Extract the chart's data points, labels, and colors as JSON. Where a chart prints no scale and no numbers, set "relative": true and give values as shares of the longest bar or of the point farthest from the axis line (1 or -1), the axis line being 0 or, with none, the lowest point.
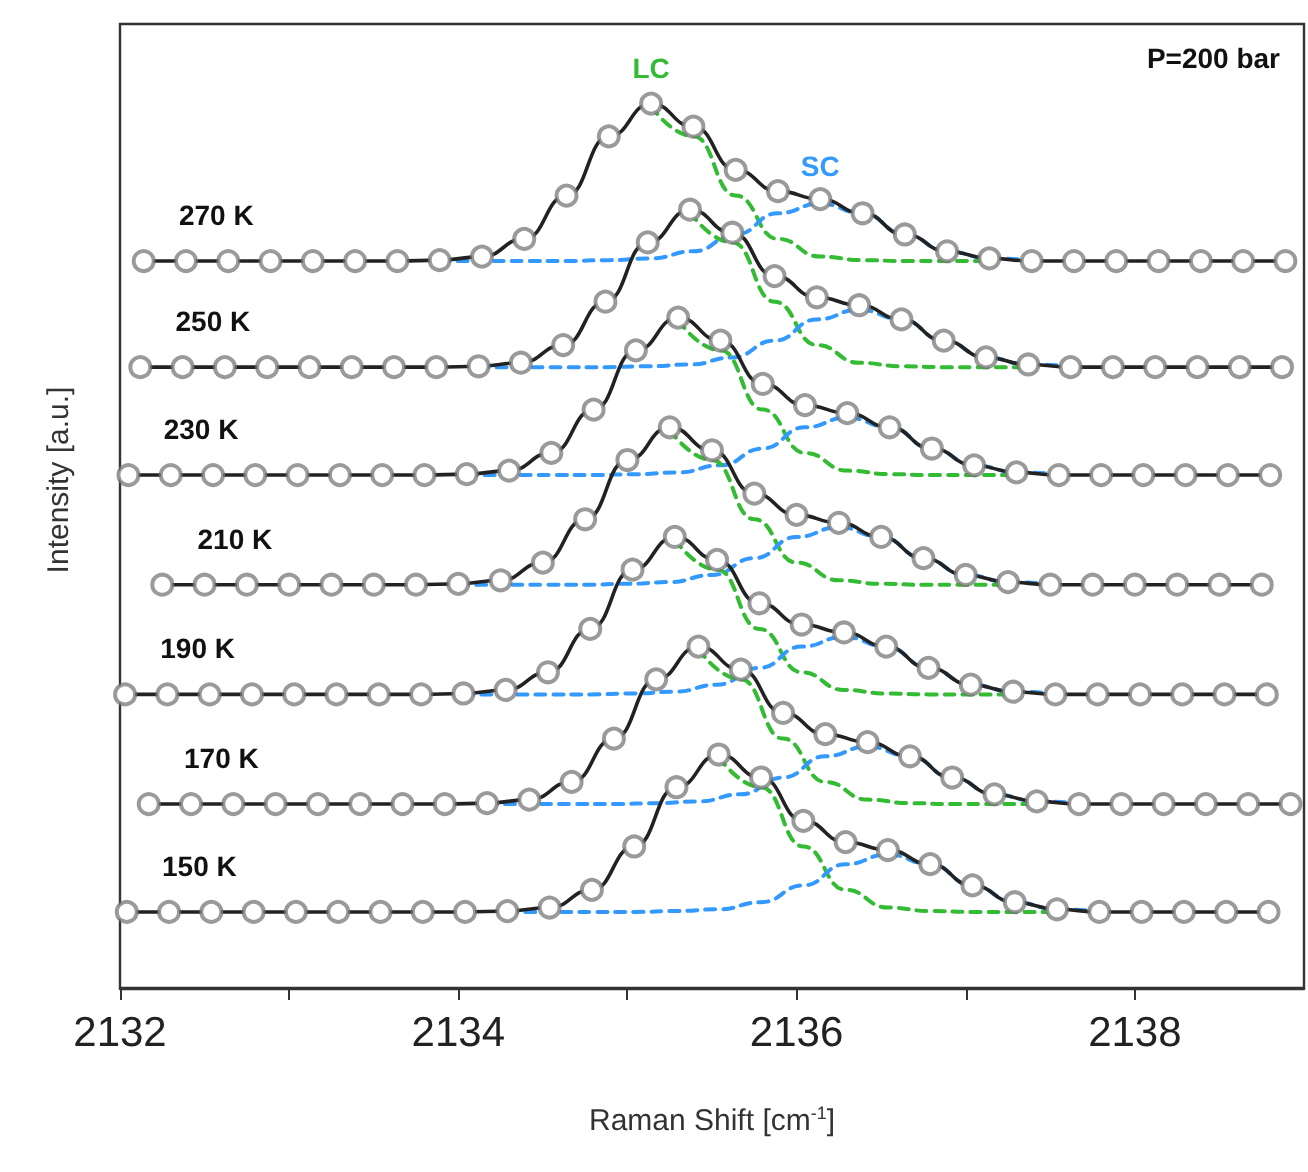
{
  "chart_data": {
    "type": "line",
    "relative": true,
    "xlabel": "Raman Shift [cm$^{-1}$]",
    "ylabel": "Intensity [a.u.]",
    "xlim": [
      2132,
      2139
    ],
    "xticks": [
      2132,
      {
        "value": 2133,
        "label": null
      },
      2134,
      {
        "value": 2135,
        "label": null
      },
      2136,
      {
        "value": 2137,
        "label": null
      },
      2138
    ],
    "grid": false,
    "legend": false,
    "annotations": [
      "P=200 bar"
    ],
    "series": [
      {
        "name": "270 K",
        "color": "#222222",
        "marker": "circle",
        "line_style": "solid",
        "x": [
          2132.14,
          2132.39,
          2132.64,
          2132.89,
          2133.14,
          2133.39,
          2133.64,
          2133.89,
          2134.14,
          2134.39,
          2134.64,
          2134.89,
          2135.14,
          2135.39,
          2135.64,
          2135.89,
          2136.14,
          2136.39,
          2136.64,
          2136.89,
          2137.14,
          2137.39,
          2137.64,
          2137.89,
          2138.14,
          2138.39,
          2138.64,
          2138.89
        ],
        "values": [
          0.822,
          0.822,
          0.822,
          0.822,
          0.822,
          0.822,
          0.822,
          0.823,
          0.827,
          0.847,
          0.896,
          0.963,
          1.0,
          0.974,
          0.925,
          0.901,
          0.892,
          0.876,
          0.852,
          0.833,
          0.825,
          0.822,
          0.822,
          0.822,
          0.822,
          0.822,
          0.822,
          0.822
        ]
      },
      {
        "name": "LC",
        "color": "#33bb33",
        "marker": "none",
        "line_style": "dashed",
        "x": [
          2135.14,
          2135.39,
          2135.64,
          2135.89,
          2136.14,
          2136.39,
          2136.64,
          2136.89,
          2137.14
        ],
        "values": [
          0.997,
          0.963,
          0.896,
          0.847,
          0.827,
          0.823,
          0.822,
          0.822,
          0.822
        ]
      },
      {
        "name": "SC",
        "color": "#3399ff",
        "marker": "none",
        "line_style": "dashed",
        "x": [
          2133.89,
          2134.14,
          2134.39,
          2134.64,
          2134.89,
          2135.14,
          2135.39,
          2135.64,
          2135.89,
          2136.14,
          2136.39,
          2136.64,
          2136.89,
          2137.14,
          2137.39
        ],
        "values": [
          0.822,
          0.822,
          0.822,
          0.822,
          0.823,
          0.825,
          0.833,
          0.852,
          0.876,
          0.887,
          0.876,
          0.852,
          0.833,
          0.825,
          0.823
        ]
      },
      {
        "name": "250 K",
        "color": "#222222",
        "marker": "circle",
        "line_style": "solid",
        "x": [
          2132.12,
          2132.37,
          2132.62,
          2132.87,
          2133.12,
          2133.37,
          2133.62,
          2133.87,
          2134.12,
          2134.37,
          2134.62,
          2134.87,
          2135.12,
          2135.37,
          2135.62,
          2135.87,
          2136.12,
          2136.37,
          2136.62,
          2136.87,
          2137.12,
          2137.37,
          2137.62,
          2137.87,
          2138.12,
          2138.37,
          2138.62,
          2138.87
        ],
        "values": [
          0.702,
          0.702,
          0.702,
          0.702,
          0.702,
          0.702,
          0.702,
          0.702,
          0.703,
          0.707,
          0.727,
          0.776,
          0.843,
          0.88,
          0.854,
          0.805,
          0.781,
          0.772,
          0.756,
          0.732,
          0.713,
          0.705,
          0.702,
          0.702,
          0.702,
          0.702,
          0.702,
          0.702
        ]
      },
      {
        "color": "#33bb33",
        "marker": "none",
        "line_style": "dashed",
        "x": [
          2135.37,
          2135.62,
          2135.87,
          2136.12,
          2136.37,
          2136.62,
          2136.87,
          2137.12,
          2137.37
        ],
        "values": [
          0.877,
          0.843,
          0.776,
          0.727,
          0.707,
          0.703,
          0.702,
          0.702,
          0.702
        ]
      },
      {
        "color": "#3399ff",
        "marker": "none",
        "line_style": "dashed",
        "x": [
          2134.12,
          2134.37,
          2134.62,
          2134.87,
          2135.12,
          2135.37,
          2135.62,
          2135.87,
          2136.12,
          2136.37,
          2136.62,
          2136.87,
          2137.12,
          2137.37,
          2137.62
        ],
        "values": [
          0.702,
          0.702,
          0.702,
          0.702,
          0.703,
          0.705,
          0.713,
          0.732,
          0.756,
          0.767,
          0.756,
          0.732,
          0.713,
          0.705,
          0.703
        ]
      },
      {
        "name": "230 K",
        "color": "#222222",
        "marker": "circle",
        "line_style": "solid",
        "x": [
          2132.05,
          2132.3,
          2132.55,
          2132.8,
          2133.05,
          2133.3,
          2133.55,
          2133.8,
          2134.05,
          2134.3,
          2134.55,
          2134.8,
          2135.05,
          2135.3,
          2135.55,
          2135.8,
          2136.05,
          2136.3,
          2136.55,
          2136.8,
          2137.05,
          2137.3,
          2137.55,
          2137.8,
          2138.05,
          2138.3,
          2138.55,
          2138.8
        ],
        "values": [
          0.58,
          0.58,
          0.58,
          0.58,
          0.58,
          0.58,
          0.58,
          0.58,
          0.581,
          0.585,
          0.605,
          0.654,
          0.721,
          0.758,
          0.732,
          0.683,
          0.659,
          0.65,
          0.634,
          0.61,
          0.591,
          0.583,
          0.58,
          0.58,
          0.58,
          0.58,
          0.58,
          0.58
        ]
      },
      {
        "color": "#33bb33",
        "marker": "none",
        "line_style": "dashed",
        "x": [
          2135.3,
          2135.55,
          2135.8,
          2136.05,
          2136.3,
          2136.55,
          2136.8,
          2137.05,
          2137.3
        ],
        "values": [
          0.755,
          0.721,
          0.654,
          0.605,
          0.585,
          0.581,
          0.58,
          0.58,
          0.58
        ]
      },
      {
        "color": "#3399ff",
        "marker": "none",
        "line_style": "dashed",
        "x": [
          2134.05,
          2134.3,
          2134.55,
          2134.8,
          2135.05,
          2135.3,
          2135.55,
          2135.8,
          2136.05,
          2136.3,
          2136.55,
          2136.8,
          2137.05,
          2137.3,
          2137.55
        ],
        "values": [
          0.58,
          0.58,
          0.58,
          0.58,
          0.581,
          0.583,
          0.591,
          0.61,
          0.634,
          0.645,
          0.634,
          0.61,
          0.591,
          0.583,
          0.581
        ]
      },
      {
        "name": "210 K",
        "color": "#222222",
        "marker": "circle",
        "line_style": "solid",
        "x": [
          2132.25,
          2132.5,
          2132.75,
          2133,
          2133.25,
          2133.5,
          2133.75,
          2134,
          2134.25,
          2134.5,
          2134.75,
          2135,
          2135.25,
          2135.5,
          2135.75,
          2136,
          2136.25,
          2136.5,
          2136.75,
          2137,
          2137.25,
          2137.5,
          2137.75,
          2138,
          2138.25,
          2138.5,
          2138.75
        ],
        "values": [
          0.456,
          0.456,
          0.456,
          0.456,
          0.456,
          0.456,
          0.456,
          0.457,
          0.461,
          0.481,
          0.53,
          0.597,
          0.634,
          0.608,
          0.559,
          0.535,
          0.526,
          0.51,
          0.486,
          0.467,
          0.459,
          0.456,
          0.456,
          0.456,
          0.456,
          0.456,
          0.456
        ]
      },
      {
        "color": "#33bb33",
        "marker": "none",
        "line_style": "dashed",
        "x": [
          2135.25,
          2135.5,
          2135.75,
          2136,
          2136.25,
          2136.5,
          2136.75,
          2137,
          2137.25
        ],
        "values": [
          0.631,
          0.597,
          0.53,
          0.481,
          0.461,
          0.457,
          0.456,
          0.456,
          0.456
        ]
      },
      {
        "color": "#3399ff",
        "marker": "none",
        "line_style": "dashed",
        "x": [
          2134,
          2134.25,
          2134.5,
          2134.75,
          2135,
          2135.25,
          2135.5,
          2135.75,
          2136,
          2136.25,
          2136.5,
          2136.75,
          2137,
          2137.25,
          2137.5
        ],
        "values": [
          0.456,
          0.456,
          0.456,
          0.456,
          0.457,
          0.459,
          0.467,
          0.486,
          0.51,
          0.521,
          0.51,
          0.486,
          0.467,
          0.459,
          0.457
        ]
      },
      {
        "name": "190 K",
        "color": "#222222",
        "marker": "circle",
        "line_style": "solid",
        "x": [
          2132.03,
          2132.28,
          2132.53,
          2132.78,
          2133.03,
          2133.28,
          2133.53,
          2133.78,
          2134.03,
          2134.28,
          2134.53,
          2134.78,
          2135.03,
          2135.28,
          2135.53,
          2135.78,
          2136.03,
          2136.28,
          2136.53,
          2136.78,
          2137.03,
          2137.28,
          2137.53,
          2137.78,
          2138.03,
          2138.28,
          2138.53,
          2138.78
        ],
        "values": [
          0.332,
          0.332,
          0.332,
          0.332,
          0.332,
          0.332,
          0.332,
          0.332,
          0.333,
          0.337,
          0.357,
          0.406,
          0.473,
          0.51,
          0.484,
          0.435,
          0.411,
          0.402,
          0.386,
          0.362,
          0.343,
          0.335,
          0.332,
          0.332,
          0.332,
          0.332,
          0.332,
          0.332
        ]
      },
      {
        "color": "#33bb33",
        "marker": "none",
        "line_style": "dashed",
        "x": [
          2135.28,
          2135.53,
          2135.78,
          2136.03,
          2136.28,
          2136.53,
          2136.78,
          2137.03,
          2137.28
        ],
        "values": [
          0.507,
          0.473,
          0.406,
          0.357,
          0.337,
          0.333,
          0.332,
          0.332,
          0.332
        ]
      },
      {
        "color": "#3399ff",
        "marker": "none",
        "line_style": "dashed",
        "x": [
          2134.03,
          2134.28,
          2134.53,
          2134.78,
          2135.03,
          2135.28,
          2135.53,
          2135.78,
          2136.03,
          2136.28,
          2136.53,
          2136.78,
          2137.03,
          2137.28,
          2137.53
        ],
        "values": [
          0.332,
          0.332,
          0.332,
          0.332,
          0.333,
          0.335,
          0.343,
          0.362,
          0.386,
          0.397,
          0.386,
          0.362,
          0.343,
          0.335,
          0.333
        ]
      },
      {
        "name": "170 K",
        "color": "#222222",
        "marker": "circle",
        "line_style": "solid",
        "x": [
          2132.17,
          2132.42,
          2132.67,
          2132.92,
          2133.17,
          2133.42,
          2133.67,
          2133.92,
          2134.17,
          2134.42,
          2134.67,
          2134.92,
          2135.17,
          2135.42,
          2135.67,
          2135.92,
          2136.17,
          2136.42,
          2136.67,
          2136.92,
          2137.17,
          2137.42,
          2137.67,
          2137.92,
          2138.17,
          2138.42,
          2138.67,
          2138.92
        ],
        "values": [
          0.208,
          0.208,
          0.208,
          0.208,
          0.208,
          0.208,
          0.208,
          0.208,
          0.209,
          0.213,
          0.233,
          0.282,
          0.349,
          0.386,
          0.36,
          0.311,
          0.287,
          0.278,
          0.262,
          0.238,
          0.219,
          0.211,
          0.208,
          0.208,
          0.208,
          0.208,
          0.208,
          0.208
        ]
      },
      {
        "color": "#33bb33",
        "marker": "none",
        "line_style": "dashed",
        "x": [
          2135.42,
          2135.67,
          2135.92,
          2136.17,
          2136.42,
          2136.67,
          2136.92,
          2137.17,
          2137.42
        ],
        "values": [
          0.383,
          0.349,
          0.282,
          0.233,
          0.213,
          0.209,
          0.208,
          0.208,
          0.208
        ]
      },
      {
        "color": "#3399ff",
        "marker": "none",
        "line_style": "dashed",
        "x": [
          2134.17,
          2134.42,
          2134.67,
          2134.92,
          2135.17,
          2135.42,
          2135.67,
          2135.92,
          2136.17,
          2136.42,
          2136.67,
          2136.92,
          2137.17,
          2137.42,
          2137.67
        ],
        "values": [
          0.208,
          0.208,
          0.208,
          0.208,
          0.209,
          0.211,
          0.219,
          0.238,
          0.262,
          0.273,
          0.262,
          0.238,
          0.219,
          0.211,
          0.209
        ]
      },
      {
        "name": "150 K",
        "color": "#222222",
        "marker": "circle",
        "line_style": "solid",
        "x": [
          2132.04,
          2132.29,
          2132.54,
          2132.79,
          2133.04,
          2133.29,
          2133.54,
          2133.79,
          2134.04,
          2134.29,
          2134.54,
          2134.79,
          2135.04,
          2135.29,
          2135.54,
          2135.79,
          2136.04,
          2136.29,
          2136.54,
          2136.79,
          2137.04,
          2137.29,
          2137.54,
          2137.79,
          2138.04,
          2138.29,
          2138.54,
          2138.79
        ],
        "values": [
          0.086,
          0.086,
          0.086,
          0.086,
          0.086,
          0.086,
          0.086,
          0.086,
          0.086,
          0.087,
          0.091,
          0.111,
          0.16,
          0.227,
          0.264,
          0.238,
          0.189,
          0.165,
          0.156,
          0.14,
          0.116,
          0.097,
          0.089,
          0.086,
          0.086,
          0.086,
          0.086,
          0.086
        ]
      },
      {
        "color": "#33bb33",
        "marker": "none",
        "line_style": "dashed",
        "x": [
          2135.54,
          2135.79,
          2136.04,
          2136.29,
          2136.54,
          2136.79,
          2137.04,
          2137.29,
          2137.54
        ],
        "values": [
          0.261,
          0.227,
          0.16,
          0.111,
          0.091,
          0.087,
          0.086,
          0.086,
          0.086
        ]
      },
      {
        "color": "#3399ff",
        "marker": "none",
        "line_style": "dashed",
        "x": [
          2134.29,
          2134.54,
          2134.79,
          2135.04,
          2135.29,
          2135.54,
          2135.79,
          2136.04,
          2136.29,
          2136.54,
          2136.79,
          2137.04,
          2137.29,
          2137.54,
          2137.79
        ],
        "values": [
          0.086,
          0.086,
          0.086,
          0.086,
          0.087,
          0.089,
          0.097,
          0.116,
          0.14,
          0.151,
          0.14,
          0.116,
          0.097,
          0.089,
          0.087
        ]
      }
    ]
  }
}
